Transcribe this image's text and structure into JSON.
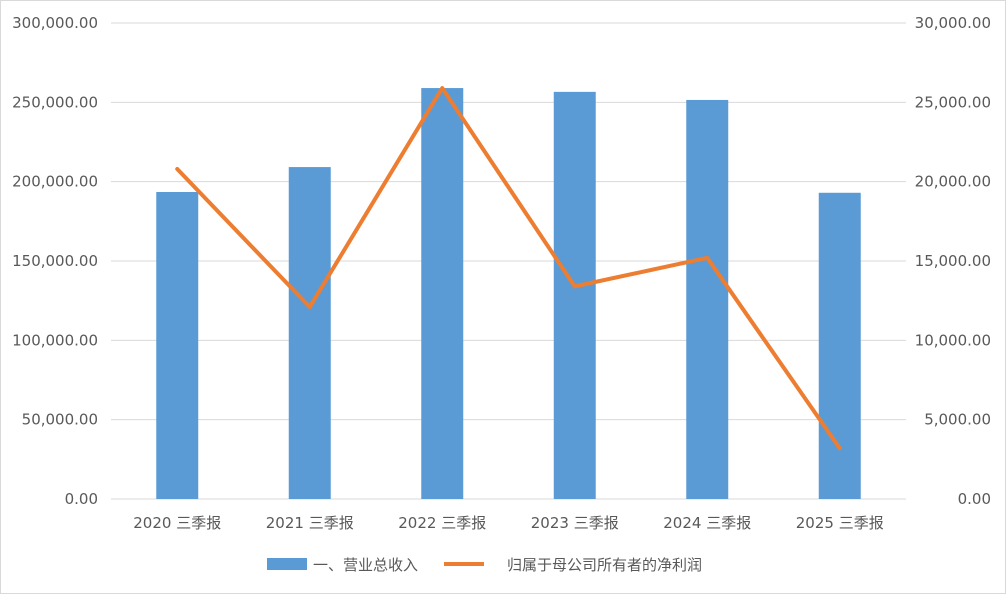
{
  "chart_data": {
    "type": "bar",
    "categories": [
      "2020 三季报",
      "2021 三季报",
      "2022 三季报",
      "2023 三季报",
      "2024 三季报",
      "2025 三季报"
    ],
    "series": [
      {
        "name": "一、营业总收入",
        "type": "bar",
        "axis": "left",
        "color": "#5b9bd5",
        "values": [
          193500,
          209200,
          259000,
          256600,
          251500,
          193000
        ]
      },
      {
        "name": "归属于母公司所有者的净利润",
        "type": "line",
        "axis": "right",
        "color": "#ed7d31",
        "values": [
          20800,
          12100,
          25900,
          13400,
          15200,
          3200
        ]
      }
    ],
    "y_left": {
      "ylim": [
        0,
        300000
      ],
      "ticks": [
        "0.00",
        "50,000.00",
        "100,000.00",
        "150,000.00",
        "200,000.00",
        "250,000.00",
        "300,000.00"
      ]
    },
    "y_right": {
      "ylim": [
        0,
        30000
      ],
      "ticks": [
        "0.00",
        "5,000.00",
        "10,000.00",
        "15,000.00",
        "20,000.00",
        "25,000.00",
        "30,000.00"
      ]
    },
    "grid": true,
    "legend_position": "bottom"
  }
}
